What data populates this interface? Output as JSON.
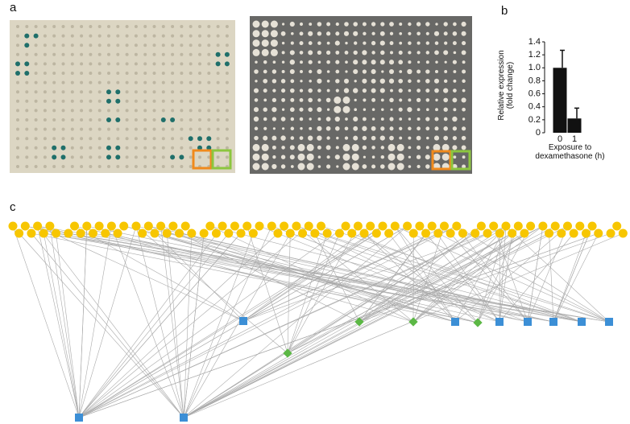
{
  "panel_labels": {
    "a": "a",
    "b": "b",
    "c": "c"
  },
  "chart_data": {
    "type": "bar",
    "ylabel": "Relative expression (fold change)",
    "xlabel": "Exposure to dexamethasone (h)",
    "categories": [
      "0",
      "1"
    ],
    "values": [
      1.0,
      0.22
    ],
    "errors": [
      0.27,
      0.16
    ],
    "color": "#111111",
    "ylim": [
      0,
      1.4
    ],
    "yticks": [
      0,
      0.2,
      0.4,
      0.6,
      0.8,
      {
        "value": 1,
        "label": "1.0"
      },
      1.2,
      1.4
    ]
  }
}
